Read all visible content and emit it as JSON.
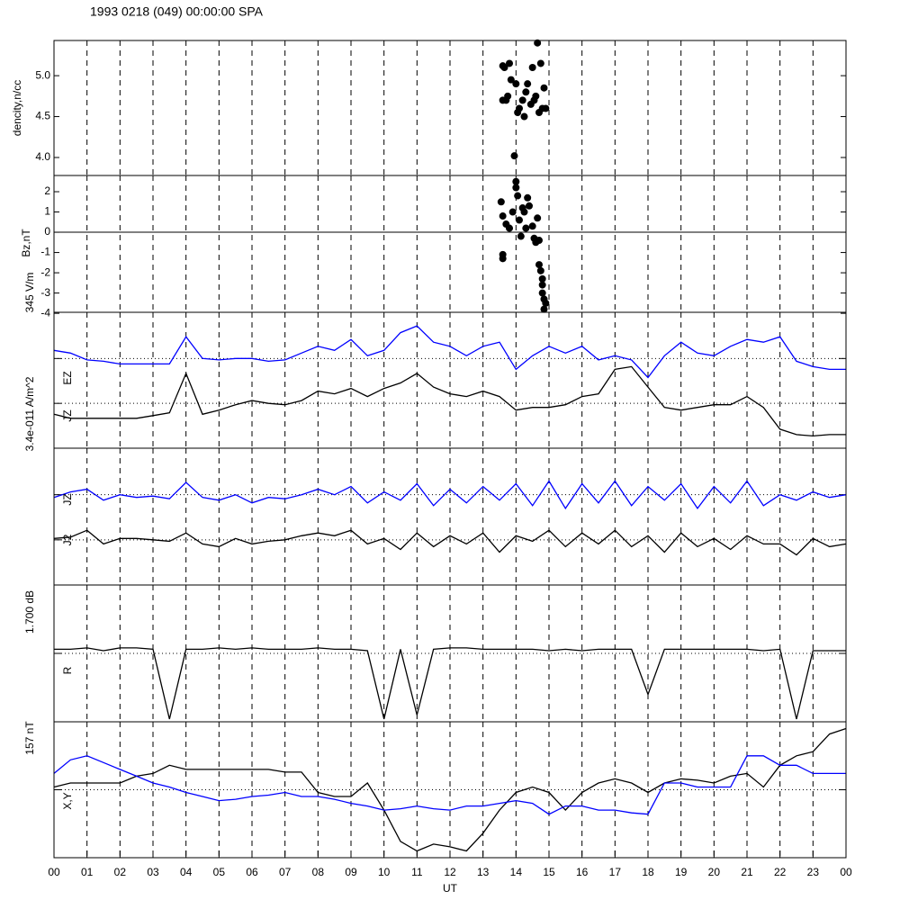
{
  "chart_data": [
    {
      "type": "scatter",
      "title": "1993 0218 (049) 00:00:00 SPA",
      "ylabel": "dencity,n/cc",
      "xlim": [
        0,
        24
      ],
      "ylim": [
        3.78,
        5.43
      ],
      "yticks": [
        {
          "value": 4,
          "label": "4.0"
        },
        4.5,
        {
          "value": 5,
          "label": "5.0"
        }
      ],
      "color": "#000000",
      "x": [
        13.6,
        13.65,
        13.7,
        13.75,
        13.8,
        13.85,
        14.0,
        14.05,
        14.1,
        13.95,
        14.2,
        14.25,
        14.3,
        14.35,
        14.5,
        14.55,
        14.6,
        14.65,
        14.7,
        14.75,
        14.8,
        14.85,
        14.9,
        13.6,
        14.45
      ],
      "values": [
        5.12,
        5.1,
        4.7,
        4.75,
        5.15,
        4.95,
        4.9,
        4.55,
        4.6,
        4.02,
        4.7,
        4.5,
        4.8,
        4.9,
        5.1,
        4.7,
        4.75,
        5.4,
        4.55,
        5.15,
        4.6,
        4.85,
        4.6,
        4.7,
        4.65
      ]
    },
    {
      "type": "scatter",
      "ylabel": "Bz,nT",
      "xlim": [
        0,
        24
      ],
      "ylim": [
        -3.95,
        2.8
      ],
      "yticks": [
        -4,
        -3,
        -2,
        -1,
        0,
        1,
        2
      ],
      "zero_line": true,
      "color": "#000000",
      "x": [
        13.55,
        13.6,
        13.6,
        13.6,
        13.7,
        13.8,
        13.9,
        14.0,
        14.0,
        14.05,
        14.1,
        14.15,
        14.2,
        14.25,
        14.3,
        14.35,
        14.4,
        14.5,
        14.55,
        14.6,
        14.65,
        14.7,
        14.7,
        14.75,
        14.8,
        14.8,
        14.85,
        14.9,
        14.85,
        14.8
      ],
      "values": [
        1.5,
        0.8,
        -1.1,
        -1.3,
        0.4,
        0.2,
        1.0,
        2.2,
        2.5,
        1.8,
        0.6,
        -0.2,
        1.2,
        1.0,
        0.2,
        1.7,
        1.3,
        0.3,
        -0.3,
        -0.5,
        0.7,
        -0.4,
        -1.6,
        -1.9,
        -2.6,
        -3.0,
        -3.3,
        -3.5,
        -3.8,
        -2.3
      ]
    },
    {
      "type": "line",
      "ylabel": "345 V/m",
      "xlim": [
        0,
        24
      ],
      "ylim": [
        0,
        100
      ],
      "reference_lines": [
        66,
        33
      ],
      "x": [
        0,
        0.5,
        1,
        1.5,
        2,
        2.5,
        3,
        3.5,
        4,
        4.5,
        5,
        5.5,
        6,
        6.5,
        7,
        7.5,
        8,
        8.5,
        9,
        9.5,
        10,
        10.5,
        11,
        11.5,
        12,
        12.5,
        13,
        13.5,
        14,
        14.5,
        15,
        15.5,
        16,
        16.5,
        17,
        17.5,
        18,
        18.5,
        19,
        19.5,
        20,
        20.5,
        21,
        21.5,
        22,
        22.5,
        23,
        23.5,
        24
      ],
      "series": [
        {
          "name": "EZ",
          "color": "#0000ff",
          "values": [
            72,
            70,
            65,
            64,
            62,
            62,
            62,
            62,
            82,
            66,
            65,
            66,
            66,
            64,
            65,
            70,
            75,
            72,
            80,
            68,
            72,
            85,
            90,
            78,
            75,
            68,
            75,
            78,
            58,
            68,
            75,
            70,
            75,
            65,
            68,
            65,
            52,
            68,
            78,
            70,
            68,
            75,
            80,
            78,
            82,
            64,
            60,
            58,
            58
          ]
        },
        {
          "name": "JZ",
          "color": "#000000",
          "values": [
            25,
            22,
            22,
            22,
            22,
            22,
            24,
            26,
            55,
            25,
            28,
            32,
            35,
            33,
            32,
            35,
            42,
            40,
            44,
            38,
            44,
            48,
            55,
            45,
            40,
            38,
            42,
            38,
            28,
            30,
            30,
            32,
            38,
            40,
            58,
            60,
            45,
            30,
            28,
            30,
            32,
            32,
            38,
            30,
            14,
            10,
            9,
            10,
            10
          ]
        }
      ]
    },
    {
      "type": "line",
      "ylabel": "3.4e-011 A/m^2",
      "xlim": [
        0,
        24
      ],
      "ylim": [
        0,
        100
      ],
      "reference_lines": [
        66,
        33
      ],
      "x": [
        0,
        0.5,
        1,
        1.5,
        2,
        2.5,
        3,
        3.5,
        4,
        4.5,
        5,
        5.5,
        6,
        6.5,
        7,
        7.5,
        8,
        8.5,
        9,
        9.5,
        10,
        10.5,
        11,
        11.5,
        12,
        12.5,
        13,
        13.5,
        14,
        14.5,
        15,
        15.5,
        16,
        16.5,
        17,
        17.5,
        18,
        18.5,
        19,
        19.5,
        20,
        20.5,
        21,
        21.5,
        22,
        22.5,
        23,
        23.5,
        24
      ],
      "series": [
        {
          "name": "JZ",
          "color": "#0000ff",
          "values": [
            64,
            68,
            70,
            62,
            66,
            64,
            65,
            63,
            75,
            64,
            62,
            66,
            60,
            64,
            63,
            66,
            70,
            66,
            72,
            60,
            68,
            62,
            74,
            58,
            70,
            60,
            72,
            62,
            74,
            58,
            76,
            56,
            74,
            60,
            76,
            58,
            72,
            62,
            74,
            56,
            72,
            60,
            76,
            58,
            66,
            62,
            68,
            64,
            66
          ]
        },
        {
          "name": "J2",
          "color": "#000000",
          "values": [
            34,
            35,
            40,
            30,
            34,
            34,
            33,
            32,
            38,
            30,
            28,
            34,
            30,
            32,
            33,
            36,
            38,
            36,
            40,
            30,
            34,
            26,
            38,
            28,
            36,
            30,
            38,
            24,
            36,
            32,
            40,
            28,
            38,
            30,
            40,
            28,
            36,
            24,
            38,
            28,
            34,
            26,
            36,
            30,
            30,
            22,
            34,
            28,
            30
          ]
        }
      ]
    },
    {
      "type": "line",
      "ylabel": "1.700 dB",
      "xlim": [
        0,
        24
      ],
      "ylim": [
        0,
        100
      ],
      "reference_lines": [
        50
      ],
      "x": [
        0,
        0.5,
        1,
        1.5,
        2,
        2.5,
        3,
        3.5,
        4,
        4.5,
        5,
        5.5,
        6,
        6.5,
        7,
        7.5,
        8,
        8.5,
        9,
        9.5,
        10,
        10.5,
        11,
        11.5,
        12,
        12.5,
        13,
        13.5,
        14,
        14.5,
        15,
        15.5,
        16,
        16.5,
        17,
        17.5,
        18,
        18.5,
        19,
        19.5,
        20,
        20.5,
        21,
        21.5,
        22,
        22.5,
        23,
        23.5,
        24
      ],
      "series": [
        {
          "name": "R",
          "color": "#000000",
          "values": [
            53,
            53,
            54,
            52,
            54,
            54,
            53,
            2,
            53,
            53,
            54,
            53,
            54,
            53,
            53,
            53,
            54,
            53,
            53,
            52,
            2,
            53,
            5,
            53,
            54,
            54,
            53,
            53,
            53,
            53,
            52,
            53,
            52,
            53,
            53,
            53,
            20,
            53,
            53,
            53,
            53,
            53,
            53,
            52,
            53,
            2,
            52,
            52,
            52
          ]
        }
      ]
    },
    {
      "type": "line",
      "ylabel": "157 nT",
      "label": "X,Y",
      "xlabel": "UT",
      "xlim": [
        0,
        24
      ],
      "ylim": [
        0,
        100
      ],
      "reference_lines": [
        50
      ],
      "xticks": [
        {
          "value": 0,
          "label": "00"
        },
        {
          "value": 1,
          "label": "01"
        },
        {
          "value": 2,
          "label": "02"
        },
        {
          "value": 3,
          "label": "03"
        },
        {
          "value": 4,
          "label": "04"
        },
        {
          "value": 5,
          "label": "05"
        },
        {
          "value": 6,
          "label": "06"
        },
        {
          "value": 7,
          "label": "07"
        },
        {
          "value": 8,
          "label": "08"
        },
        {
          "value": 9,
          "label": "09"
        },
        10,
        11,
        12,
        13,
        14,
        15,
        16,
        17,
        18,
        19,
        20,
        21,
        22,
        23,
        {
          "value": 24,
          "label": "00"
        }
      ],
      "x": [
        0,
        0.5,
        1,
        1.5,
        2,
        2.5,
        3,
        3.5,
        4,
        4.5,
        5,
        5.5,
        6,
        6.5,
        7,
        7.5,
        8,
        8.5,
        9,
        9.5,
        10,
        10.5,
        11,
        11.5,
        12,
        12.5,
        13,
        13.5,
        14,
        14.5,
        15,
        15.5,
        16,
        16.5,
        17,
        17.5,
        18,
        18.5,
        19,
        19.5,
        20,
        20.5,
        21,
        21.5,
        22,
        22.5,
        23,
        23.5,
        24
      ],
      "series": [
        {
          "color": "#000000",
          "values": [
            52,
            55,
            55,
            55,
            55,
            60,
            62,
            68,
            65,
            65,
            65,
            65,
            65,
            65,
            63,
            63,
            48,
            45,
            45,
            55,
            35,
            12,
            5,
            10,
            8,
            5,
            18,
            35,
            48,
            52,
            48,
            35,
            48,
            55,
            58,
            55,
            48,
            55,
            58,
            57,
            55,
            60,
            62,
            52,
            68,
            75,
            78,
            91,
            95
          ]
        },
        {
          "color": "#0000ff",
          "values": [
            62,
            72,
            75,
            70,
            65,
            60,
            55,
            52,
            48,
            45,
            42,
            43,
            45,
            46,
            48,
            45,
            45,
            43,
            40,
            38,
            35,
            36,
            38,
            36,
            35,
            38,
            38,
            40,
            42,
            40,
            32,
            38,
            38,
            35,
            35,
            33,
            32,
            55,
            55,
            52,
            52,
            52,
            75,
            75,
            68,
            68,
            62,
            62,
            62
          ]
        }
      ]
    }
  ]
}
